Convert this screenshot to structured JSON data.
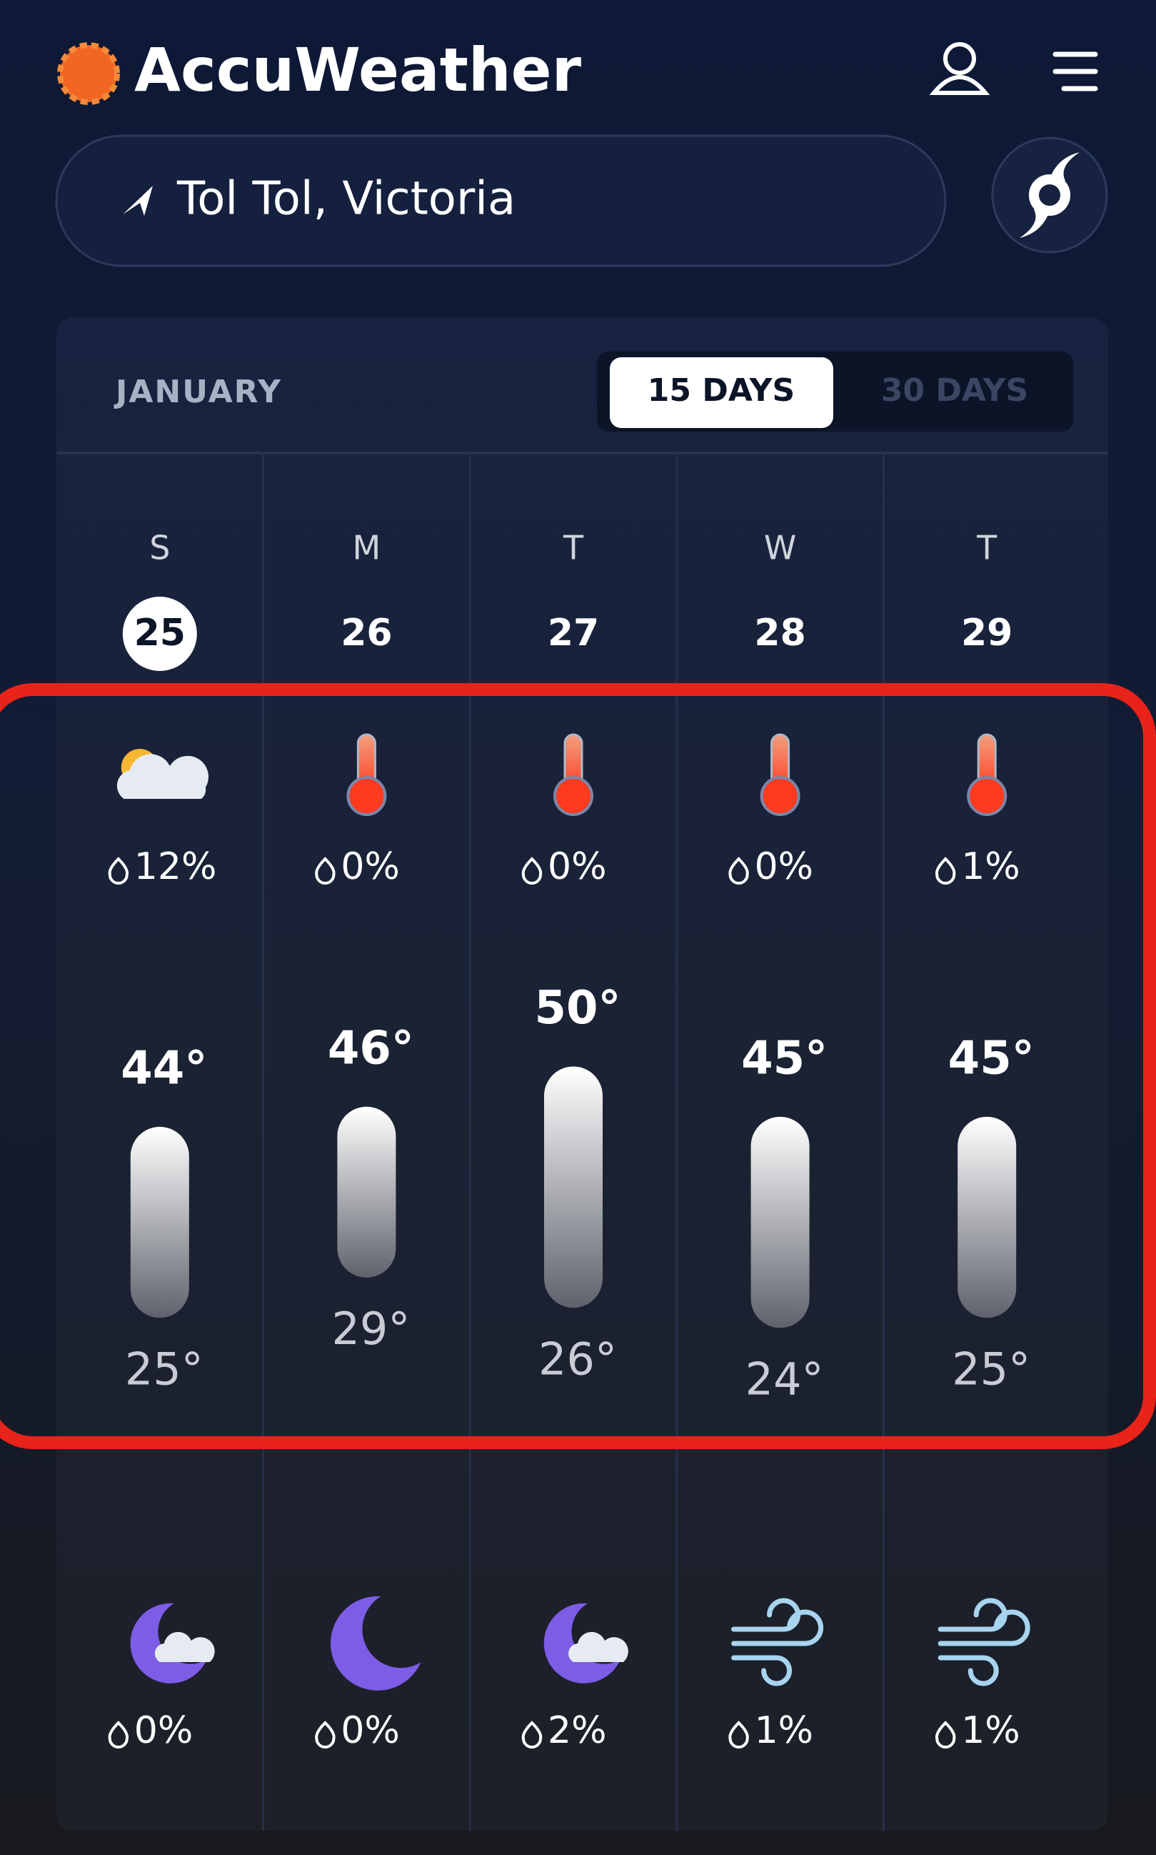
{
  "header": {
    "brand": "AccuWeather"
  },
  "location": "Tol Tol, Victoria",
  "calendar": {
    "month": "JANUARY",
    "tabs": [
      "15 DAYS",
      "30 DAYS"
    ],
    "days": [
      {
        "weekday": "S",
        "date": "25",
        "day_precip": "12%",
        "high": "44°",
        "low": "25°",
        "night_precip": "0%"
      },
      {
        "weekday": "M",
        "date": "26",
        "day_precip": "0%",
        "high": "46°",
        "low": "29°",
        "night_precip": "0%"
      },
      {
        "weekday": "T",
        "date": "27",
        "day_precip": "0%",
        "high": "50°",
        "low": "26°",
        "night_precip": "2%"
      },
      {
        "weekday": "W",
        "date": "28",
        "day_precip": "0%",
        "high": "45°",
        "low": "24°",
        "night_precip": "1%"
      },
      {
        "weekday": "T",
        "date": "29",
        "day_precip": "1%",
        "high": "45°",
        "low": "25°",
        "night_precip": "1%"
      }
    ]
  }
}
